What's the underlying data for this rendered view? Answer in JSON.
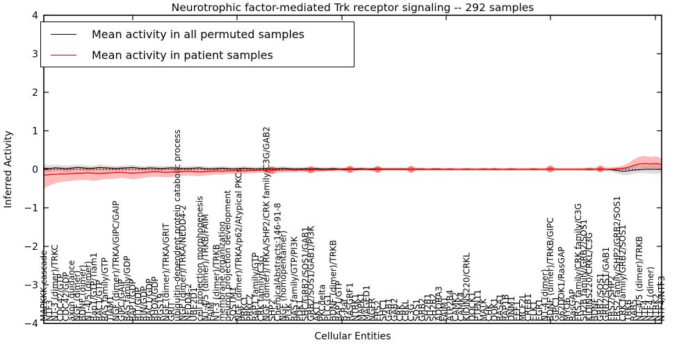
{
  "figure": {
    "title": "Neurotrophic factor-mediated Trk receptor signaling -- 292 samples",
    "xlabel": "Cellular Entities",
    "ylabel": "Inferred Activity",
    "legend": [
      {
        "label": "Mean activity in all permuted samples",
        "color": "#000000"
      },
      {
        "label": "Mean activity in patient samples",
        "color": "#ff0000"
      }
    ]
  },
  "colors": {
    "permuted_line": "#000000",
    "permuted_band": "#aaaaaa",
    "patient_line": "#ff0000",
    "patient_band": "#ff0000",
    "axes": "#000000"
  },
  "chart_data": {
    "type": "line",
    "title": "Neurotrophic factor-mediated Trk receptor signaling -- 292 samples",
    "xlabel": "Cellular Entities",
    "ylabel": "Inferred Activity",
    "ylim": [
      -4,
      4
    ],
    "ytick_values": [
      4,
      3,
      2,
      1,
      0,
      -1,
      -2,
      -3,
      -4
    ],
    "ytick_labels": [
      "4",
      "3",
      "2",
      "1",
      "0",
      "−1",
      "−2",
      "−3",
      "−4"
    ],
    "grid": false,
    "zero_line_style": "dotted",
    "legend_position": "upper left",
    "categories": [
      "MAPKKK cascade",
      "NTF3",
      "NT-3 (dimer)/TRKC",
      "CDC42/GTP",
      "CDC42/GDP",
      "axon guidance",
      "NGF (dimer)",
      "BDNF (dimer)",
      "NT-4/5 (dimer)",
      "Rap1/GTP/Tiam1",
      "RAC1/GTP",
      "RAS family/GTP",
      "TIAM1",
      "NGF (dimer)/TRKA/GIPC/GAIP",
      "GIPC/GAIP",
      "RAS family/GDP",
      "RAP1/GDP",
      "RIT/GDP",
      "RIN/GDP",
      "RAC1/GDP",
      "RHOA/GDP",
      "RGS19",
      "NGF (dimer)/TRKA/GRIT",
      "GRIT",
      "ubiquitin-dependent protein catabolic process",
      "NGF (dimer)/TRKA/NEDD4-2",
      "NEDD4-2",
      "UBE2D1",
      "cell projection morphogenesis",
      "NT-4/5 (dimer)/TRKB/FAIM",
      "FAIM",
      "NT-3 (dimer)/TRKB",
      "membrane organization",
      "neuron projection development",
      "SQSTM1",
      "NGF (dimer)/TRKA/p62/Atypical PKCs",
      "PRKCI",
      "PRKCZ",
      "RAP1 family/GTP",
      "CRK family/C3G",
      "NGF (dimer)/TRKA/SHP2/CRK family/C3G/GAB2",
      "SHP2",
      "ChemicalAbstracts:146-91-8",
      "NGF (homopentamer)",
      "PI3K",
      "RAS family/GTP/PI3K",
      "PDK1",
      "SHC/GRB2/SOS1/GAB1",
      "GRB2/SOS1/GAB1/PI3K",
      "AKT1",
      "PKCdelta",
      "PLCG1",
      "BDNF (dimer)/TRKB",
      "RAP1/GTP",
      "B-Raf",
      "RASGRF1",
      "NTRK1",
      "MAPK1",
      "MAGED1",
      "NGFR",
      "FRS2",
      "SHC1",
      "GAB1",
      "GAB2",
      "CRK",
      "CRKL",
      "C3G",
      "SOS1",
      "GRB2",
      "SH2B1",
      "SH2B2",
      "ADORA3",
      "FAIM1",
      "ATP2B4",
      "CAMK2",
      "CAMK4",
      "KIDINS220/CRKL",
      "DOCK1",
      "PTPN11",
      "MATK",
      "CHK",
      "DOK1",
      "RASA1",
      "RAP1B",
      "DNM1",
      "EEF1",
      "MCF2L",
      "CREB1",
      "ELK1",
      "EGR1",
      "NT-4 (dimer)",
      "BDNF (dimer)/TRKB/GIPC",
      "GIPC1",
      "p62DOK1/RasGAP",
      "MYO6",
      "RasGAP",
      "FRS2 family/CRK family/C3G",
      "SH2B family/GRB2/SOS1",
      "KIDINS220/CRKL/C3G",
      "BDNF",
      "GRB2/SOS1",
      "GRB2/SOS1/GAB1",
      "FRS2/SHP2",
      "FRS2 family/SHP2/GRB2/SOS1",
      "CRK family/GRB2/SOS1",
      "TRKB",
      "RAB5",
      "NT-4/5 (dimer)/TRKB",
      "NTF4",
      "NTF4 (dimer)",
      "NTRK2",
      "NTF4/NTF3"
    ],
    "series": [
      {
        "name": "Mean activity in all permuted samples",
        "color": "#000000",
        "values": [
          0.03,
          0.02,
          0.04,
          0.03,
          0.01,
          0.03,
          0.05,
          0.04,
          0.02,
          0.03,
          0.05,
          0.04,
          0.03,
          0.02,
          0.03,
          0.04,
          0.05,
          0.03,
          0.02,
          0.04,
          0.03,
          0.02,
          0.03,
          0.04,
          0.03,
          0.02,
          0.02,
          0.03,
          0.04,
          0.02,
          0.01,
          0.02,
          0.03,
          0.02,
          0.01,
          0.02,
          0.03,
          0.02,
          0.01,
          0.02,
          0.02,
          0.01,
          0.02,
          0.03,
          0.02,
          0.01,
          0.01,
          0.02,
          0.01,
          0.02,
          0.01,
          0.01,
          0.02,
          0.01,
          0.01,
          0.01,
          0.01,
          0.02,
          0.01,
          0.01,
          0.01,
          0.01,
          0.01,
          0.01,
          0.01,
          0.01,
          0.0,
          0.01,
          0.01,
          0.0,
          0.01,
          0.01,
          0.0,
          0.01,
          0.0,
          0.0,
          0.01,
          0.0,
          0.0,
          0.01,
          0.0,
          0.01,
          0.0,
          0.0,
          0.01,
          0.0,
          0.0,
          0.0,
          0.01,
          0.0,
          0.0,
          0.01,
          0.0,
          0.0,
          0.0,
          0.0,
          0.0,
          0.0,
          0.01,
          0.0,
          0.0,
          0.0,
          -0.01,
          -0.03,
          -0.05,
          -0.04,
          -0.02,
          -0.01,
          0.0,
          0.0,
          0.0,
          0.0
        ],
        "band_hi": [
          0.13,
          0.11,
          0.12,
          0.11,
          0.1,
          0.11,
          0.12,
          0.12,
          0.09,
          0.1,
          0.13,
          0.11,
          0.1,
          0.08,
          0.1,
          0.11,
          0.11,
          0.1,
          0.08,
          0.1,
          0.1,
          0.08,
          0.09,
          0.1,
          0.09,
          0.07,
          0.08,
          0.09,
          0.09,
          0.08,
          0.06,
          0.07,
          0.09,
          0.07,
          0.06,
          0.07,
          0.09,
          0.07,
          0.06,
          0.07,
          0.07,
          0.05,
          0.07,
          0.08,
          0.06,
          0.06,
          0.05,
          0.07,
          0.05,
          0.07,
          0.05,
          0.05,
          0.07,
          0.05,
          0.05,
          0.05,
          0.05,
          0.06,
          0.05,
          0.05,
          0.05,
          0.05,
          0.05,
          0.05,
          0.05,
          0.05,
          0.03,
          0.05,
          0.05,
          0.03,
          0.05,
          0.04,
          0.03,
          0.05,
          0.03,
          0.03,
          0.05,
          0.03,
          0.03,
          0.05,
          0.03,
          0.05,
          0.03,
          0.03,
          0.05,
          0.03,
          0.03,
          0.03,
          0.05,
          0.03,
          0.03,
          0.05,
          0.03,
          0.03,
          0.03,
          0.03,
          0.04,
          0.04,
          0.06,
          0.04,
          0.04,
          0.05,
          0.05,
          0.05,
          0.05,
          0.07,
          0.08,
          0.08,
          0.1,
          0.11,
          0.12,
          0.1
        ],
        "band_lo": [
          -0.07,
          -0.07,
          -0.04,
          -0.05,
          -0.08,
          -0.05,
          -0.02,
          -0.04,
          -0.05,
          -0.04,
          -0.03,
          -0.03,
          -0.04,
          -0.04,
          -0.04,
          -0.03,
          -0.01,
          -0.04,
          -0.04,
          -0.02,
          -0.04,
          -0.04,
          -0.03,
          -0.02,
          -0.03,
          -0.03,
          -0.04,
          -0.03,
          -0.01,
          -0.04,
          -0.04,
          -0.03,
          -0.03,
          -0.03,
          -0.04,
          -0.03,
          -0.03,
          -0.03,
          -0.04,
          -0.03,
          -0.03,
          -0.03,
          -0.03,
          -0.02,
          -0.02,
          -0.04,
          -0.03,
          -0.03,
          -0.03,
          -0.03,
          -0.03,
          -0.03,
          -0.03,
          -0.03,
          -0.03,
          -0.03,
          -0.03,
          -0.02,
          -0.03,
          -0.03,
          -0.03,
          -0.03,
          -0.03,
          -0.03,
          -0.03,
          -0.03,
          -0.03,
          -0.03,
          -0.03,
          -0.03,
          -0.03,
          -0.02,
          -0.03,
          -0.03,
          -0.03,
          -0.03,
          -0.03,
          -0.03,
          -0.03,
          -0.03,
          -0.03,
          -0.03,
          -0.03,
          -0.03,
          -0.03,
          -0.03,
          -0.03,
          -0.03,
          -0.03,
          -0.03,
          -0.03,
          -0.03,
          -0.03,
          -0.03,
          -0.03,
          -0.03,
          -0.04,
          -0.04,
          -0.04,
          -0.04,
          -0.04,
          -0.05,
          -0.07,
          -0.11,
          -0.15,
          -0.15,
          -0.12,
          -0.1,
          -0.1,
          -0.11,
          -0.12,
          -0.1
        ]
      },
      {
        "name": "Mean activity in patient samples",
        "color": "#ff0000",
        "values": [
          -0.15,
          -0.14,
          -0.13,
          -0.12,
          -0.12,
          -0.11,
          -0.1,
          -0.1,
          -0.09,
          -0.1,
          -0.11,
          -0.1,
          -0.09,
          -0.08,
          -0.08,
          -0.09,
          -0.1,
          -0.09,
          -0.08,
          -0.07,
          -0.06,
          -0.07,
          -0.08,
          -0.07,
          -0.06,
          -0.06,
          -0.05,
          -0.06,
          -0.07,
          -0.06,
          -0.05,
          -0.04,
          -0.05,
          -0.04,
          -0.04,
          -0.03,
          -0.04,
          -0.03,
          -0.03,
          -0.02,
          -0.03,
          -0.02,
          -0.02,
          -0.02,
          -0.01,
          -0.02,
          -0.01,
          -0.02,
          -0.01,
          -0.01,
          -0.02,
          -0.01,
          -0.01,
          0.0,
          -0.01,
          0.0,
          -0.01,
          0.0,
          0.0,
          -0.01,
          0.0,
          0.0,
          0.0,
          0.0,
          0.0,
          0.0,
          0.0,
          0.0,
          0.0,
          0.0,
          0.0,
          0.0,
          0.0,
          0.0,
          0.0,
          0.0,
          0.0,
          0.0,
          0.0,
          0.0,
          0.0,
          0.0,
          0.0,
          0.0,
          0.0,
          0.0,
          0.0,
          0.0,
          0.0,
          0.0,
          0.0,
          0.01,
          0.0,
          0.0,
          0.0,
          0.0,
          0.0,
          0.0,
          0.0,
          0.0,
          0.01,
          0.0,
          0.0,
          0.01,
          0.02,
          0.05,
          0.1,
          0.14,
          0.15,
          0.14,
          0.15,
          0.13
        ],
        "band_hi": [
          0.05,
          0.04,
          0.04,
          0.05,
          0.05,
          0.06,
          0.05,
          0.05,
          0.06,
          0.05,
          0.05,
          0.06,
          0.05,
          0.05,
          0.06,
          0.05,
          0.04,
          0.05,
          0.05,
          0.04,
          0.05,
          0.04,
          0.04,
          0.05,
          0.04,
          0.04,
          0.05,
          0.04,
          0.04,
          0.04,
          0.04,
          0.05,
          0.04,
          0.04,
          0.03,
          0.04,
          0.03,
          0.04,
          0.03,
          0.03,
          0.04,
          0.08,
          0.03,
          0.04,
          0.03,
          0.03,
          0.04,
          0.03,
          0.07,
          0.04,
          0.03,
          0.03,
          0.04,
          0.03,
          0.03,
          0.09,
          0.03,
          0.03,
          0.03,
          0.03,
          0.08,
          0.03,
          0.03,
          0.03,
          0.03,
          0.03,
          0.08,
          0.03,
          0.03,
          0.03,
          0.03,
          0.03,
          0.03,
          0.03,
          0.03,
          0.03,
          0.03,
          0.03,
          0.03,
          0.03,
          0.03,
          0.03,
          0.03,
          0.03,
          0.03,
          0.03,
          0.03,
          0.03,
          0.03,
          0.03,
          0.03,
          0.09,
          0.03,
          0.03,
          0.03,
          0.03,
          0.03,
          0.03,
          0.04,
          0.03,
          0.08,
          0.03,
          0.04,
          0.06,
          0.09,
          0.16,
          0.26,
          0.33,
          0.35,
          0.32,
          0.34,
          0.28
        ],
        "band_lo": [
          -0.5,
          -0.42,
          -0.37,
          -0.33,
          -0.31,
          -0.3,
          -0.28,
          -0.27,
          -0.28,
          -0.3,
          -0.28,
          -0.26,
          -0.25,
          -0.24,
          -0.22,
          -0.24,
          -0.26,
          -0.24,
          -0.22,
          -0.2,
          -0.19,
          -0.2,
          -0.21,
          -0.2,
          -0.18,
          -0.17,
          -0.16,
          -0.17,
          -0.18,
          -0.16,
          -0.15,
          -0.13,
          -0.14,
          -0.12,
          -0.12,
          -0.11,
          -0.12,
          -0.1,
          -0.1,
          -0.09,
          -0.1,
          -0.13,
          -0.08,
          -0.08,
          -0.07,
          -0.08,
          -0.06,
          -0.07,
          -0.1,
          -0.06,
          -0.07,
          -0.05,
          -0.05,
          -0.04,
          -0.05,
          -0.1,
          -0.04,
          -0.04,
          -0.03,
          -0.04,
          -0.09,
          -0.03,
          -0.03,
          -0.03,
          -0.03,
          -0.03,
          -0.08,
          -0.03,
          -0.03,
          -0.03,
          -0.03,
          -0.03,
          -0.03,
          -0.03,
          -0.03,
          -0.03,
          -0.03,
          -0.03,
          -0.03,
          -0.03,
          -0.03,
          -0.03,
          -0.03,
          -0.03,
          -0.03,
          -0.03,
          -0.03,
          -0.03,
          -0.03,
          -0.03,
          -0.03,
          -0.07,
          -0.03,
          -0.03,
          -0.03,
          -0.03,
          -0.03,
          -0.03,
          -0.04,
          -0.03,
          -0.06,
          -0.03,
          -0.03,
          -0.02,
          -0.01,
          0.0,
          0.02,
          0.03,
          0.02,
          0.0,
          0.02,
          0.01
        ],
        "marker_indices": [
          41,
          48,
          55,
          60,
          66,
          91,
          100
        ]
      }
    ]
  }
}
